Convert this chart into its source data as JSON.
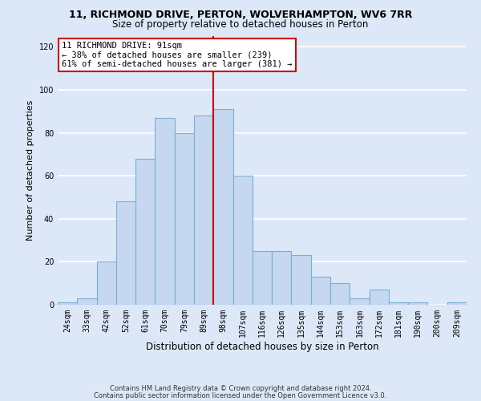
{
  "title1": "11, RICHMOND DRIVE, PERTON, WOLVERHAMPTON, WV6 7RR",
  "title2": "Size of property relative to detached houses in Perton",
  "xlabel": "Distribution of detached houses by size in Perton",
  "ylabel": "Number of detached properties",
  "categories": [
    "24sqm",
    "33sqm",
    "42sqm",
    "52sqm",
    "61sqm",
    "70sqm",
    "79sqm",
    "89sqm",
    "98sqm",
    "107sqm",
    "116sqm",
    "126sqm",
    "135sqm",
    "144sqm",
    "153sqm",
    "163sqm",
    "172sqm",
    "181sqm",
    "190sqm",
    "200sqm",
    "209sqm"
  ],
  "values": [
    1,
    3,
    20,
    48,
    68,
    87,
    80,
    88,
    91,
    60,
    25,
    25,
    23,
    13,
    10,
    3,
    7,
    1,
    1,
    0,
    1
  ],
  "bar_color": "#c5d8f0",
  "bar_edge_color": "#7aafd4",
  "vline_index": 7,
  "vline_color": "#cc0000",
  "annotation_line1": "11 RICHMOND DRIVE: 91sqm",
  "annotation_line2": "← 38% of detached houses are smaller (239)",
  "annotation_line3": "61% of semi-detached houses are larger (381) →",
  "annotation_box_color": "#ffffff",
  "annotation_box_edge": "#cc0000",
  "footer1": "Contains HM Land Registry data © Crown copyright and database right 2024.",
  "footer2": "Contains public sector information licensed under the Open Government Licence v3.0.",
  "ylim": [
    0,
    125
  ],
  "yticks": [
    0,
    20,
    40,
    60,
    80,
    100,
    120
  ],
  "background_color": "#dce8f7",
  "grid_color": "#ffffff",
  "title1_fontsize": 9,
  "title2_fontsize": 8.5,
  "ylabel_fontsize": 8,
  "xlabel_fontsize": 8.5,
  "tick_fontsize": 7,
  "annot_fontsize": 7.5,
  "footer_fontsize": 6
}
